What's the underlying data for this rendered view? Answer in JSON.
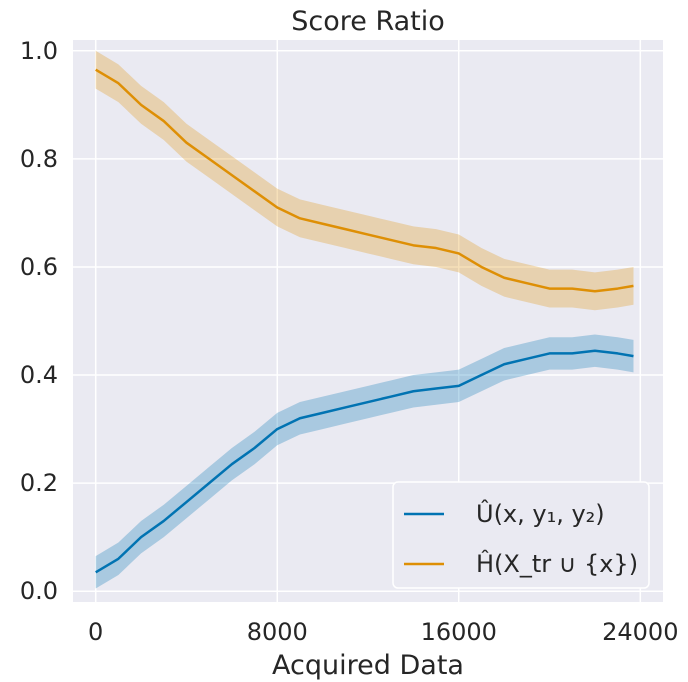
{
  "chart_data": {
    "type": "line",
    "title": "Score Ratio",
    "xlabel": "Acquired Data",
    "ylabel": "",
    "xlim": [
      -1000,
      25000
    ],
    "ylim": [
      -0.02,
      1.02
    ],
    "xticks": [
      0,
      8000,
      16000,
      24000
    ],
    "xtick_labels": [
      "0",
      "8000",
      "16000",
      "24000"
    ],
    "yticks": [
      0.0,
      0.2,
      0.4,
      0.6,
      0.8,
      1.0
    ],
    "ytick_labels": [
      "0.0",
      "0.2",
      "0.4",
      "0.6",
      "0.8",
      "1.0"
    ],
    "grid": true,
    "legend_position": "lower-right",
    "series": [
      {
        "name": "Û(x, y₁, y₂)",
        "color": "#0173b2",
        "x": [
          0,
          1000,
          2000,
          3000,
          4000,
          5000,
          6000,
          7000,
          8000,
          9000,
          10000,
          11000,
          12000,
          13000,
          14000,
          15000,
          16000,
          17000,
          18000,
          19000,
          20000,
          21000,
          22000,
          23000,
          23700
        ],
        "values": [
          0.035,
          0.06,
          0.1,
          0.13,
          0.165,
          0.2,
          0.235,
          0.265,
          0.3,
          0.32,
          0.33,
          0.34,
          0.35,
          0.36,
          0.37,
          0.375,
          0.38,
          0.4,
          0.42,
          0.43,
          0.44,
          0.44,
          0.445,
          0.44,
          0.435
        ],
        "band": 0.03
      },
      {
        "name": "Ĥ(X_tr ∪ {x})",
        "color": "#de8f05",
        "x": [
          0,
          1000,
          2000,
          3000,
          4000,
          5000,
          6000,
          7000,
          8000,
          9000,
          10000,
          11000,
          12000,
          13000,
          14000,
          15000,
          16000,
          17000,
          18000,
          19000,
          20000,
          21000,
          22000,
          23000,
          23700
        ],
        "values": [
          0.965,
          0.94,
          0.9,
          0.87,
          0.83,
          0.8,
          0.77,
          0.74,
          0.71,
          0.69,
          0.68,
          0.67,
          0.66,
          0.65,
          0.64,
          0.635,
          0.625,
          0.6,
          0.58,
          0.57,
          0.56,
          0.56,
          0.555,
          0.56,
          0.565
        ],
        "band": 0.035
      }
    ]
  }
}
